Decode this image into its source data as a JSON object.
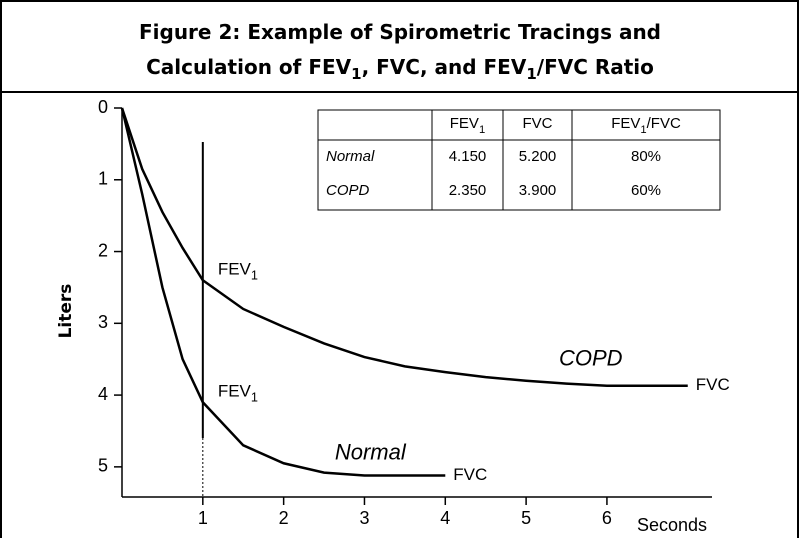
{
  "chart_data": {
    "type": "line",
    "title": [
      [
        {
          "t": "Figure 2: Example of Spirometric Tracings and"
        }
      ],
      [
        {
          "t": "Calculation of FEV"
        },
        {
          "s": "1"
        },
        {
          "t": ", FVC, and FEV"
        },
        {
          "s": "1"
        },
        {
          "t": "/FVC Ratio"
        }
      ]
    ],
    "ylabel": "Liters",
    "xlabel": "Seconds",
    "y_inverted": true,
    "xlim": [
      0,
      7.3
    ],
    "xticks": [
      1,
      2,
      3,
      4,
      5,
      6
    ],
    "ylim": [
      0,
      5.42
    ],
    "yticks": [
      0,
      1,
      2,
      3,
      4,
      5
    ],
    "x": [
      0,
      0.25,
      0.5,
      0.75,
      1,
      1.5,
      2,
      2.5,
      3,
      3.5,
      4,
      4.5,
      5,
      5.5,
      6,
      6.5,
      7
    ],
    "series": [
      {
        "name": "Normal",
        "color": "#000000",
        "values": [
          0,
          1.2,
          2.5,
          3.5,
          4.1,
          4.7,
          4.95,
          5.08,
          5.12,
          5.12,
          5.12,
          null,
          null,
          null,
          null,
          null,
          null
        ]
      },
      {
        "name": "COPD",
        "color": "#000000",
        "values": [
          0,
          0.85,
          1.45,
          1.95,
          2.4,
          2.8,
          3.05,
          3.28,
          3.47,
          3.6,
          3.68,
          3.75,
          3.8,
          3.84,
          3.87,
          3.87,
          3.87
        ]
      }
    ],
    "annotations": {
      "fev1": [
        {
          "t": "FEV"
        },
        {
          "s": "1"
        }
      ],
      "fvc": "FVC"
    },
    "table": {
      "headers": [
        [
          {
            "t": "FEV"
          },
          {
            "s": "1"
          }
        ],
        [
          {
            "t": "FVC"
          }
        ],
        [
          {
            "t": "FEV"
          },
          {
            "s": "1"
          },
          {
            "t": "/FVC"
          }
        ]
      ],
      "rows": [
        {
          "label": "Normal",
          "cells": [
            "4.150",
            "5.200",
            "80%"
          ]
        },
        {
          "label": "COPD",
          "cells": [
            "2.350",
            "3.900",
            "60%"
          ]
        }
      ]
    }
  }
}
